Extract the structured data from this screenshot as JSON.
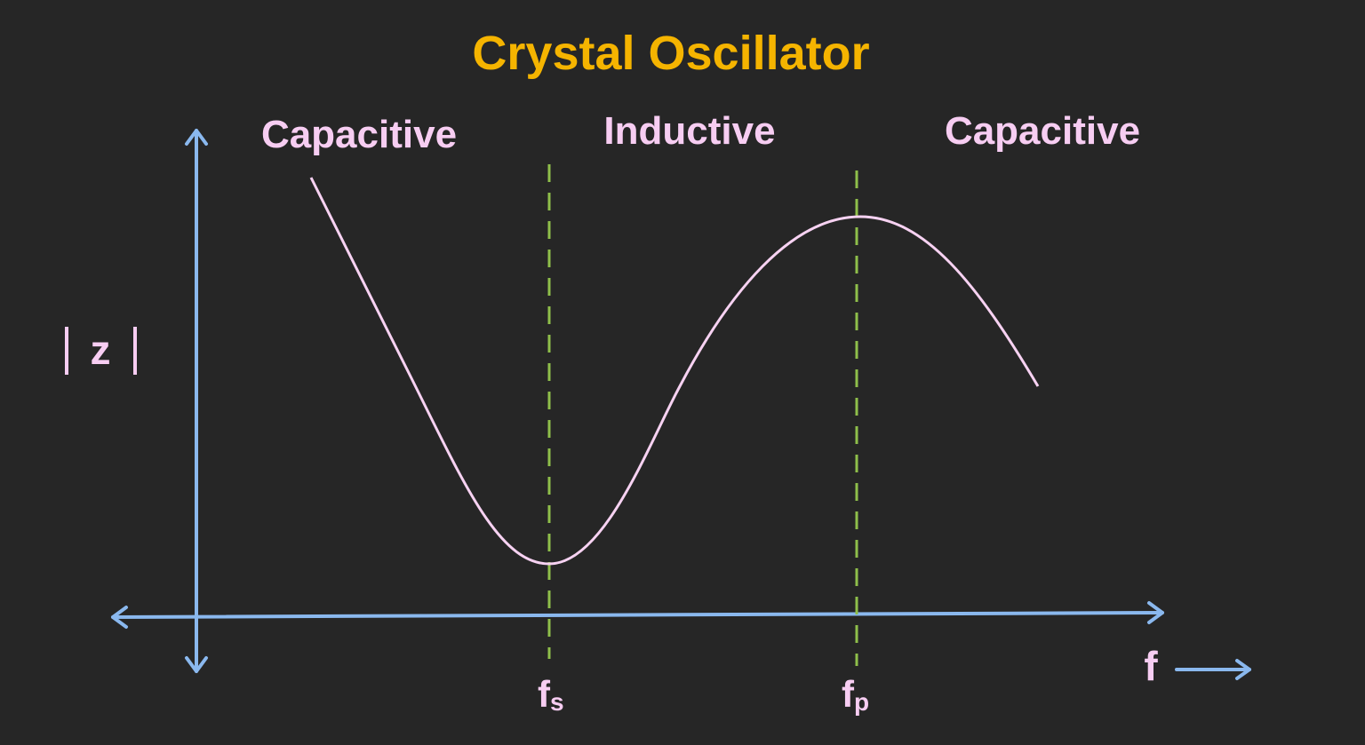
{
  "title": "Crystal Oscillator",
  "regions": [
    "Capacitive",
    "Inductive",
    "Capacitive"
  ],
  "y_axis": {
    "label": "z"
  },
  "x_axis": {
    "label": "f"
  },
  "markers": [
    {
      "label": "f",
      "subscript": "s"
    },
    {
      "label": "f",
      "subscript": "p"
    }
  ]
}
